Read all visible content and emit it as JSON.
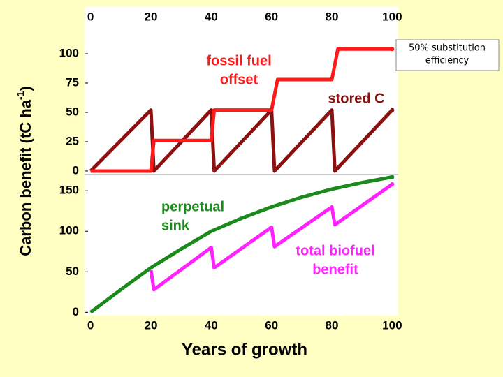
{
  "chart_data": [
    {
      "type": "line",
      "y_label": {
        "text": "Carbon benefit  (tC ha",
        "sup": "-1",
        "end": ")"
      },
      "note": [
        "50% substitution",
        "efficiency"
      ],
      "xlim": [
        -2,
        102
      ],
      "xticks": [
        0,
        20,
        40,
        60,
        80,
        100
      ],
      "ylim": [
        -3,
        125
      ],
      "yticks": [
        0,
        25,
        50,
        75,
        100
      ],
      "series": [
        {
          "name": "stored C",
          "color": "#8b1010",
          "x": [
            0,
            20,
            21,
            40,
            41,
            60,
            61,
            80,
            81,
            100
          ],
          "values": [
            0,
            52,
            0,
            52,
            0,
            52,
            0,
            52,
            0,
            52
          ]
        },
        {
          "name": "fossil fuel offset",
          "color": "#ff1a1a",
          "x": [
            0,
            20,
            21,
            40,
            41,
            60,
            62,
            80,
            82,
            100
          ],
          "values": [
            0,
            0,
            26,
            26,
            52,
            52,
            78,
            78,
            104,
            104
          ]
        }
      ],
      "annotations": [
        {
          "lines": [
            "fossil fuel",
            "offset"
          ],
          "color": "#ff1a1a"
        },
        {
          "lines": [
            "stored C"
          ],
          "color": "#8b1010"
        }
      ]
    },
    {
      "type": "line",
      "x_label": "Years of growth",
      "xlim": [
        -2,
        102
      ],
      "xticks": [
        0,
        20,
        40,
        60,
        80,
        100
      ],
      "ylim": [
        -4,
        170
      ],
      "yticks": [
        0,
        50,
        100,
        150
      ],
      "series": [
        {
          "name": "perpetual sink",
          "color": "#1a8a1a",
          "x": [
            0,
            10,
            20,
            30,
            40,
            50,
            60,
            70,
            80,
            90,
            100
          ],
          "values": [
            0,
            28,
            55,
            78,
            100,
            116,
            130,
            142,
            152,
            160,
            167
          ]
        },
        {
          "name": "total biofuel benefit",
          "color": "#ff22ff",
          "x": [
            20,
            21,
            40,
            41,
            60,
            61,
            80,
            81,
            100
          ],
          "values": [
            52,
            28,
            80,
            55,
            105,
            81,
            130,
            108,
            158
          ]
        }
      ],
      "annotations": [
        {
          "lines": [
            "perpetual",
            "sink"
          ],
          "color": "#1a8a1a"
        },
        {
          "lines": [
            "total biofuel",
            "benefit"
          ],
          "color": "#ff22ff"
        }
      ]
    }
  ]
}
